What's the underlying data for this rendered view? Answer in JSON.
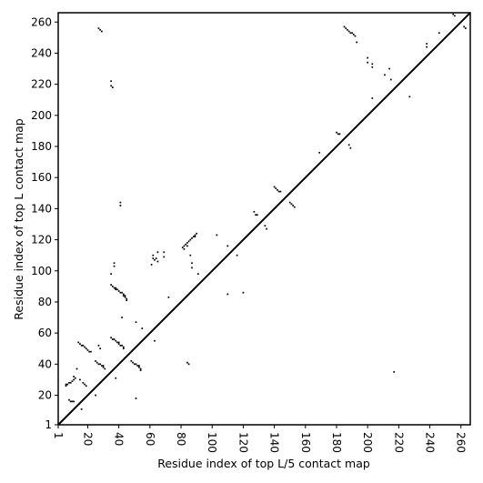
{
  "chart_data": {
    "type": "scatter",
    "title": "",
    "xlabel": "Residue index of top L/5 contact map",
    "ylabel": "Residue index of top L contact map",
    "xlim": [
      1,
      266
    ],
    "ylim": [
      1,
      266
    ],
    "x_ticks": [
      1,
      20,
      40,
      60,
      80,
      100,
      120,
      140,
      160,
      180,
      200,
      220,
      240,
      260
    ],
    "x_tick_labels": [
      "1",
      "20",
      "40",
      "60",
      "80",
      "100",
      "120",
      "140",
      "160",
      "180",
      "200",
      "220",
      "240",
      "260"
    ],
    "y_ticks": [
      1,
      20,
      40,
      60,
      80,
      100,
      120,
      140,
      160,
      180,
      200,
      220,
      240,
      260
    ],
    "y_tick_labels": [
      "1",
      "20",
      "40",
      "60",
      "80",
      "100",
      "120",
      "140",
      "160",
      "180",
      "200",
      "220",
      "240",
      "260"
    ],
    "diagonal_line": true,
    "grid": false,
    "colors": {
      "points": "#000000",
      "diagonal": "#000000",
      "axes": "#000000",
      "background": "#ffffff"
    },
    "lower_points": [
      [
        27,
        256
      ],
      [
        28,
        255
      ],
      [
        29,
        254
      ],
      [
        35,
        222
      ],
      [
        35,
        219
      ],
      [
        36,
        218
      ],
      [
        41,
        144
      ],
      [
        41,
        142
      ],
      [
        37,
        105
      ],
      [
        37,
        103
      ],
      [
        35,
        98
      ],
      [
        35,
        91
      ],
      [
        36,
        90
      ],
      [
        37,
        89
      ],
      [
        38,
        89
      ],
      [
        38,
        88
      ],
      [
        39,
        88
      ],
      [
        40,
        87
      ],
      [
        41,
        86
      ],
      [
        42,
        86
      ],
      [
        43,
        85
      ],
      [
        43,
        84
      ],
      [
        44,
        84
      ],
      [
        44,
        83
      ],
      [
        45,
        82
      ],
      [
        45,
        81
      ],
      [
        42,
        70
      ],
      [
        35,
        57
      ],
      [
        36,
        56
      ],
      [
        37,
        56
      ],
      [
        38,
        55
      ],
      [
        39,
        54
      ],
      [
        40,
        54
      ],
      [
        40,
        53
      ],
      [
        41,
        52
      ],
      [
        42,
        52
      ],
      [
        43,
        51
      ],
      [
        43,
        50
      ],
      [
        27,
        52
      ],
      [
        28,
        50
      ],
      [
        25,
        42
      ],
      [
        26,
        41
      ],
      [
        27,
        40
      ],
      [
        28,
        40
      ],
      [
        29,
        39
      ],
      [
        30,
        39
      ],
      [
        30,
        38
      ],
      [
        31,
        37
      ],
      [
        38,
        31
      ],
      [
        14,
        54
      ],
      [
        15,
        53
      ],
      [
        16,
        52
      ],
      [
        17,
        52
      ],
      [
        18,
        51
      ],
      [
        19,
        50
      ],
      [
        20,
        49
      ],
      [
        21,
        48
      ],
      [
        22,
        48
      ],
      [
        13,
        37
      ],
      [
        11,
        32
      ],
      [
        12,
        31
      ],
      [
        11,
        30
      ],
      [
        10,
        29
      ],
      [
        9,
        28
      ],
      [
        8,
        28
      ],
      [
        7,
        27
      ],
      [
        6,
        27
      ],
      [
        6,
        26
      ],
      [
        15,
        30
      ],
      [
        17,
        28
      ],
      [
        18,
        27
      ],
      [
        19,
        26
      ],
      [
        8,
        17
      ],
      [
        9,
        16
      ],
      [
        10,
        16
      ],
      [
        11,
        16
      ],
      [
        16,
        11
      ],
      [
        25,
        20
      ],
      [
        48,
        42
      ],
      [
        49,
        41
      ],
      [
        50,
        40
      ],
      [
        51,
        40
      ],
      [
        52,
        39
      ],
      [
        53,
        39
      ],
      [
        53,
        38
      ],
      [
        54,
        37
      ],
      [
        54,
        36
      ],
      [
        51,
        67
      ],
      [
        55,
        63
      ],
      [
        63,
        55
      ],
      [
        51,
        18
      ],
      [
        61,
        104
      ],
      [
        62,
        108
      ],
      [
        62,
        110
      ],
      [
        63,
        107
      ],
      [
        64,
        108
      ],
      [
        65,
        106
      ],
      [
        65,
        112
      ],
      [
        69,
        112
      ],
      [
        69,
        109
      ],
      [
        72,
        83
      ],
      [
        81,
        115
      ],
      [
        82,
        116
      ],
      [
        82,
        114
      ],
      [
        83,
        117
      ],
      [
        84,
        118
      ],
      [
        84,
        116
      ],
      [
        85,
        119
      ],
      [
        86,
        120
      ],
      [
        86,
        110
      ],
      [
        87,
        121
      ],
      [
        88,
        122
      ],
      [
        89,
        122
      ],
      [
        89,
        123
      ],
      [
        90,
        124
      ],
      [
        87,
        105
      ],
      [
        87,
        102
      ],
      [
        91,
        98
      ],
      [
        84,
        41
      ],
      [
        85,
        40
      ],
      [
        103,
        123
      ],
      [
        110,
        116
      ],
      [
        110,
        85
      ],
      [
        116,
        110
      ],
      [
        120,
        86
      ]
    ],
    "upper_points": [
      [
        127,
        138
      ],
      [
        128,
        136
      ],
      [
        129,
        136
      ],
      [
        134,
        129
      ],
      [
        135,
        127
      ],
      [
        140,
        154
      ],
      [
        141,
        153
      ],
      [
        142,
        152
      ],
      [
        143,
        151
      ],
      [
        144,
        151
      ],
      [
        150,
        144
      ],
      [
        151,
        143
      ],
      [
        152,
        142
      ],
      [
        153,
        141
      ],
      [
        169,
        176
      ],
      [
        180,
        189
      ],
      [
        181,
        188
      ],
      [
        182,
        188
      ],
      [
        188,
        181
      ],
      [
        189,
        179
      ],
      [
        185,
        257
      ],
      [
        186,
        256
      ],
      [
        187,
        255
      ],
      [
        188,
        254
      ],
      [
        189,
        253
      ],
      [
        190,
        253
      ],
      [
        191,
        252
      ],
      [
        192,
        251
      ],
      [
        193,
        247
      ],
      [
        200,
        237
      ],
      [
        200,
        234
      ],
      [
        203,
        233
      ],
      [
        203,
        231
      ],
      [
        211,
        226
      ],
      [
        214,
        230
      ],
      [
        215,
        223
      ],
      [
        203,
        211
      ],
      [
        217,
        35
      ],
      [
        227,
        212
      ],
      [
        238,
        246
      ],
      [
        238,
        244
      ],
      [
        246,
        253
      ],
      [
        255,
        265
      ],
      [
        256,
        264
      ],
      [
        262,
        257
      ],
      [
        263,
        256
      ]
    ]
  }
}
